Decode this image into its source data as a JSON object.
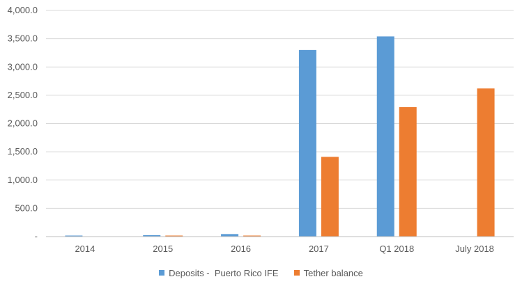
{
  "chart_data": {
    "type": "bar",
    "title": "",
    "xlabel": "",
    "ylabel": "",
    "categories": [
      "2014",
      "2015",
      "2016",
      "2017",
      "Q1 2018",
      "July 2018"
    ],
    "series": [
      {
        "name": "Deposits -  Puerto Rico IFE",
        "color": "#5b9bd5",
        "values": [
          10,
          25,
          45,
          3300,
          3540,
          0
        ]
      },
      {
        "name": "Tether balance",
        "color": "#ed7d31",
        "values": [
          0,
          8,
          8,
          1410,
          2290,
          2620
        ]
      }
    ],
    "ylim": [
      0,
      4000
    ],
    "yticks": [
      0,
      500,
      1000,
      1500,
      2000,
      2500,
      3000,
      3500,
      4000
    ],
    "ytick_labels": [
      "-",
      "500.0",
      "1,000.0",
      "1,500.0",
      "2,000.0",
      "2,500.0",
      "3,000.0",
      "3,500.0",
      "4,000.0"
    ],
    "grid": true,
    "legend_position": "bottom"
  }
}
